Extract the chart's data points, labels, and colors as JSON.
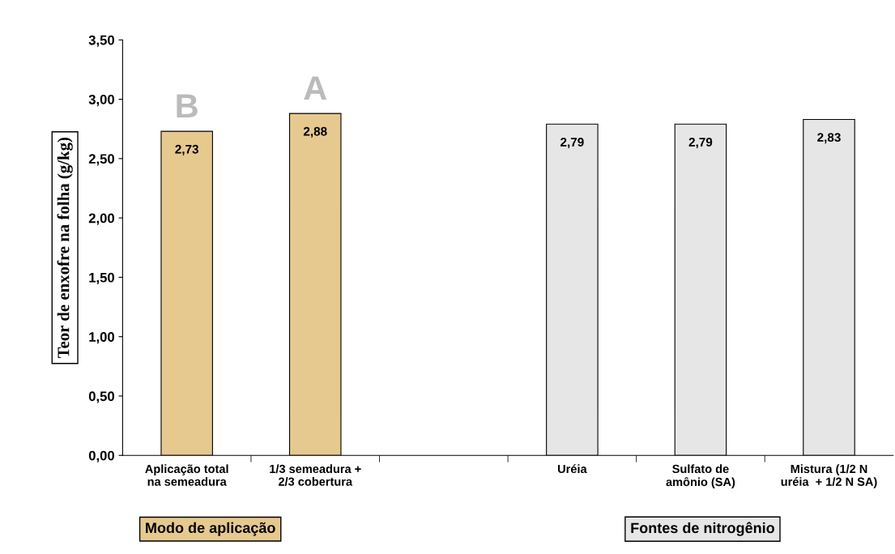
{
  "chart_data": {
    "type": "bar",
    "categories": [
      "Aplicação total\nna semeadura",
      "1/3 semeadura +\n2/3 cobertura",
      null,
      "Uréia",
      "Sulfato de\namônio (SA)",
      "Mistura (1/2 N\nuréia  + 1/2 N SA)"
    ],
    "values": [
      2.73,
      2.88,
      null,
      2.79,
      2.79,
      2.83
    ],
    "colors": [
      "#e6c98f",
      "#e6c98f",
      "#e6e6e6",
      "#e6e6e6",
      "#e6e6e6",
      "#e6e6e6"
    ],
    "ylabel": "Teor de enxofre na folha (g/kg)",
    "ylim": [
      0,
      3.5
    ],
    "yticks": [
      {
        "value": 0,
        "label": "0,00"
      },
      {
        "value": 0.5,
        "label": "0,50"
      },
      {
        "value": 1,
        "label": "1,00"
      },
      {
        "value": 1.5,
        "label": "1,50"
      },
      {
        "value": 2,
        "label": "2,00"
      },
      {
        "value": 2.5,
        "label": "2,50"
      },
      {
        "value": 3,
        "label": "3,00"
      },
      {
        "value": 3.5,
        "label": "3,50"
      }
    ],
    "value_labels": [
      "2,73",
      "2,88",
      null,
      "2,79",
      "2,79",
      "2,83"
    ],
    "grid": false,
    "annotations": [
      "B",
      "A",
      "Modo de aplicação",
      "Fontes de nitrogênio"
    ]
  }
}
